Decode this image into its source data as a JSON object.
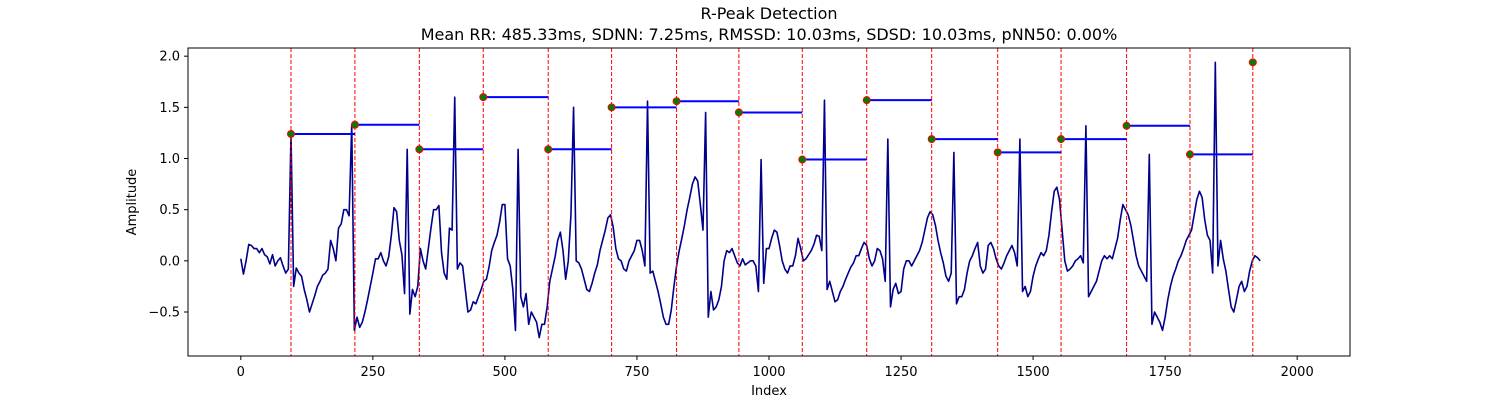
{
  "chart_data": {
    "type": "line",
    "title": "R-Peak Detection",
    "subtitle": "Mean RR: 485.33ms, SDNN: 7.25ms, RMSSD: 10.03ms, SDSD: 10.03ms, pNN50: 0.00%",
    "xlabel": "Index",
    "ylabel": "Amplitude",
    "xlim": [
      -100,
      2100
    ],
    "ylim": [
      -0.93,
      2.08
    ],
    "xticks": [
      0,
      250,
      500,
      750,
      1000,
      1250,
      1500,
      1750,
      2000
    ],
    "yticks": [
      -0.5,
      0.0,
      0.5,
      1.0,
      1.5,
      2.0
    ],
    "grid": false,
    "colors": {
      "signal": "#00008b",
      "peak_lines": "#ff0000",
      "rr_segments": "#0000ff",
      "peak_marker_face": "#008000",
      "peak_marker_edge": "#ff0000"
    },
    "r_peaks": [
      {
        "x": 95,
        "y": 1.24
      },
      {
        "x": 216,
        "y": 1.33
      },
      {
        "x": 338,
        "y": 1.09
      },
      {
        "x": 459,
        "y": 1.6
      },
      {
        "x": 582,
        "y": 1.09
      },
      {
        "x": 702,
        "y": 1.5
      },
      {
        "x": 825,
        "y": 1.56
      },
      {
        "x": 943,
        "y": 1.45
      },
      {
        "x": 1063,
        "y": 0.99
      },
      {
        "x": 1185,
        "y": 1.57
      },
      {
        "x": 1308,
        "y": 1.19
      },
      {
        "x": 1433,
        "y": 1.06
      },
      {
        "x": 1553,
        "y": 1.19
      },
      {
        "x": 1677,
        "y": 1.32
      },
      {
        "x": 1797,
        "y": 1.04
      },
      {
        "x": 1916,
        "y": 1.94
      }
    ],
    "rr_segments": [
      {
        "x0": 95,
        "x1": 216,
        "y": 1.24
      },
      {
        "x0": 216,
        "x1": 338,
        "y": 1.33
      },
      {
        "x0": 338,
        "x1": 459,
        "y": 1.09
      },
      {
        "x0": 459,
        "x1": 582,
        "y": 1.6
      },
      {
        "x0": 582,
        "x1": 702,
        "y": 1.09
      },
      {
        "x0": 702,
        "x1": 825,
        "y": 1.5
      },
      {
        "x0": 825,
        "x1": 943,
        "y": 1.56
      },
      {
        "x0": 943,
        "x1": 1063,
        "y": 1.45
      },
      {
        "x0": 1063,
        "x1": 1185,
        "y": 0.99
      },
      {
        "x0": 1185,
        "x1": 1308,
        "y": 1.57
      },
      {
        "x0": 1308,
        "x1": 1433,
        "y": 1.19
      },
      {
        "x0": 1433,
        "x1": 1553,
        "y": 1.06
      },
      {
        "x0": 1553,
        "x1": 1677,
        "y": 1.19
      },
      {
        "x0": 1677,
        "x1": 1797,
        "y": 1.32
      },
      {
        "x0": 1797,
        "x1": 1916,
        "y": 1.04
      }
    ],
    "signal": {
      "x_start": 0,
      "x_step": 5,
      "values": [
        0.02,
        -0.13,
        0.0,
        0.16,
        0.15,
        0.12,
        0.12,
        0.08,
        0.12,
        0.06,
        0.04,
        -0.03,
        0.06,
        -0.05,
        0.0,
        0.03,
        -0.05,
        -0.12,
        -0.08,
        1.24,
        -0.25,
        -0.07,
        -0.12,
        -0.15,
        -0.28,
        -0.38,
        -0.5,
        -0.42,
        -0.34,
        -0.25,
        -0.2,
        -0.14,
        -0.12,
        -0.08,
        0.2,
        0.12,
        0.0,
        0.32,
        0.36,
        0.5,
        0.5,
        0.44,
        1.33,
        -0.68,
        -0.55,
        -0.65,
        -0.6,
        -0.5,
        -0.38,
        -0.25,
        -0.12,
        0.02,
        0.02,
        0.08,
        0.0,
        -0.05,
        0.04,
        0.25,
        0.52,
        0.48,
        0.2,
        0.06,
        -0.32,
        1.09,
        -0.52,
        -0.28,
        -0.35,
        -0.25,
        0.12,
        0.0,
        -0.08,
        0.12,
        0.32,
        0.5,
        0.5,
        0.54,
        0.08,
        -0.12,
        -0.18,
        0.32,
        0.3,
        1.6,
        -0.08,
        -0.02,
        -0.05,
        -0.28,
        -0.5,
        -0.48,
        -0.4,
        -0.42,
        -0.35,
        -0.28,
        -0.2,
        -0.18,
        -0.06,
        0.1,
        0.18,
        0.25,
        0.38,
        0.55,
        0.55,
        0.02,
        -0.05,
        -0.28,
        -0.68,
        1.09,
        -0.35,
        -0.45,
        -0.32,
        -0.62,
        -0.5,
        -0.55,
        -0.6,
        -0.75,
        -0.62,
        -0.62,
        -0.45,
        -0.2,
        -0.08,
        0.04,
        0.2,
        0.28,
        0.1,
        -0.18,
        0.0,
        0.45,
        1.5,
        0.0,
        -0.02,
        -0.08,
        -0.18,
        -0.28,
        -0.3,
        -0.22,
        -0.12,
        -0.04,
        0.1,
        0.2,
        0.3,
        0.42,
        0.45,
        0.33,
        0.12,
        0.02,
        0.0,
        -0.08,
        -0.1,
        0.0,
        0.05,
        0.1,
        0.2,
        0.2,
        0.1,
        -0.05,
        1.56,
        -0.12,
        -0.1,
        -0.2,
        -0.3,
        -0.42,
        -0.55,
        -0.62,
        -0.62,
        -0.48,
        -0.25,
        -0.05,
        0.1,
        0.22,
        0.35,
        0.5,
        0.62,
        0.75,
        0.82,
        0.78,
        0.55,
        0.3,
        1.45,
        -0.55,
        -0.3,
        -0.48,
        -0.45,
        -0.38,
        -0.25,
        0.0,
        0.1,
        0.08,
        0.12,
        0.05,
        -0.02,
        -0.05,
        0.02,
        -0.04,
        -0.02,
        0.0,
        0.0,
        -0.05,
        -0.3,
        0.99,
        -0.22,
        0.12,
        0.12,
        0.22,
        0.3,
        0.28,
        0.15,
        0.0,
        -0.08,
        -0.12,
        -0.05,
        -0.05,
        0.05,
        0.22,
        0.12,
        0.0,
        0.02,
        0.06,
        0.1,
        0.16,
        0.25,
        0.24,
        0.1,
        1.57,
        -0.28,
        -0.2,
        -0.3,
        -0.4,
        -0.38,
        -0.3,
        -0.25,
        -0.18,
        -0.12,
        -0.06,
        -0.02,
        0.05,
        0.05,
        0.12,
        0.18,
        0.15,
        0.02,
        -0.05,
        0.0,
        0.12,
        0.1,
        0.02,
        -0.2,
        1.19,
        -0.45,
        -0.28,
        -0.22,
        -0.32,
        -0.3,
        -0.08,
        0.0,
        0.0,
        -0.05,
        0.0,
        0.05,
        0.1,
        0.18,
        0.3,
        0.42,
        0.48,
        0.45,
        0.35,
        0.2,
        0.08,
        -0.02,
        -0.15,
        -0.2,
        -0.12,
        1.06,
        -0.42,
        -0.35,
        -0.35,
        -0.28,
        -0.12,
        0.0,
        0.05,
        0.12,
        0.18,
        -0.05,
        -0.12,
        -0.08,
        0.15,
        0.18,
        0.12,
        0.02,
        -0.05,
        -0.08,
        -0.02,
        0.05,
        0.1,
        0.15,
        0.08,
        -0.05,
        1.19,
        -0.3,
        -0.25,
        -0.35,
        -0.3,
        -0.15,
        -0.05,
        0.02,
        0.08,
        0.05,
        0.1,
        0.25,
        0.48,
        0.68,
        0.72,
        0.6,
        0.3,
        0.0,
        -0.1,
        -0.08,
        -0.05,
        0.0,
        0.02,
        0.05,
        -0.02,
        1.32,
        -0.35,
        -0.3,
        -0.25,
        -0.2,
        -0.1,
        0.0,
        0.05,
        0.02,
        0.05,
        0.02,
        0.12,
        0.22,
        0.4,
        0.55,
        0.5,
        0.45,
        0.35,
        0.2,
        0.05,
        -0.05,
        -0.1,
        -0.15,
        -0.2,
        1.04,
        -0.62,
        -0.5,
        -0.55,
        -0.6,
        -0.68,
        -0.55,
        -0.38,
        -0.25,
        -0.15,
        -0.08,
        0.0,
        0.05,
        0.12,
        0.2,
        0.25,
        0.3,
        0.45,
        0.6,
        0.68,
        0.62,
        0.4,
        0.25,
        0.2,
        -0.12,
        1.94,
        -0.05,
        0.2,
        0.02,
        -0.1,
        -0.28,
        -0.45,
        -0.5,
        -0.38,
        -0.25,
        -0.2,
        -0.3,
        -0.25,
        -0.1,
        0.0,
        0.05,
        0.03,
        0.0
      ]
    }
  }
}
